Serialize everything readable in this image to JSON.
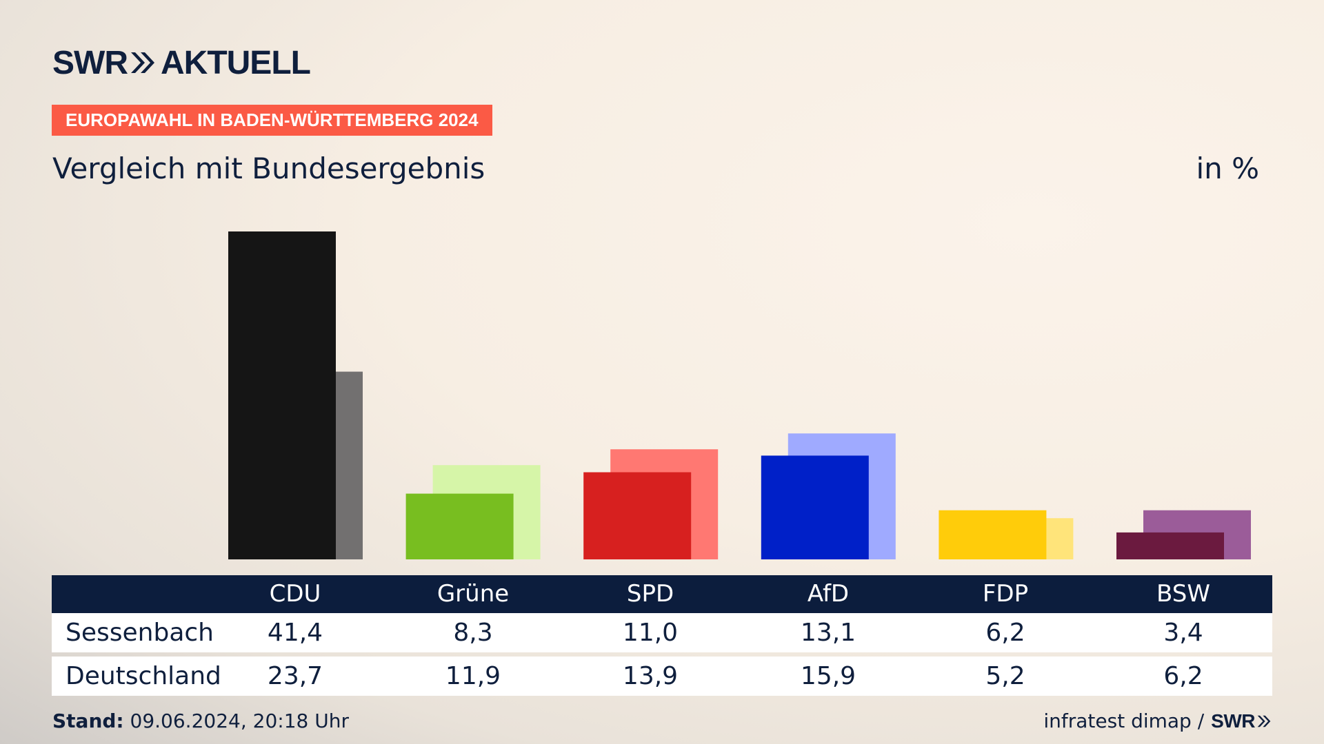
{
  "header": {
    "brand_left": "SWR",
    "brand_right": "AKTUELL",
    "kicker": "EUROPAWAHL IN BADEN-WÜRTTEMBERG 2024",
    "subtitle": "Vergleich mit Bundesergebnis",
    "unit": "in %"
  },
  "colors": {
    "navy": "#0c1d3d",
    "kicker_bg": "#fb5a45"
  },
  "chart_data": {
    "type": "bar",
    "categories": [
      "CDU",
      "Grüne",
      "SPD",
      "AfD",
      "FDP",
      "BSW"
    ],
    "series": [
      {
        "name": "Sessenbach",
        "values": [
          41.4,
          8.3,
          11.0,
          13.1,
          6.2,
          3.4
        ],
        "colors": [
          "#151515",
          "#78be20",
          "#d7201f",
          "#0020c8",
          "#ffcc0a",
          "#6b1a3f"
        ]
      },
      {
        "name": "Deutschland",
        "values": [
          23.7,
          11.9,
          13.9,
          15.9,
          5.2,
          6.2
        ],
        "colors": [
          "#727070",
          "#d6f5a8",
          "#ff7872",
          "#9faaff",
          "#ffe47a",
          "#9b5c99"
        ]
      }
    ],
    "ylim": [
      0,
      41.4
    ]
  },
  "table": {
    "headers": [
      "CDU",
      "Grüne",
      "SPD",
      "AfD",
      "FDP",
      "BSW"
    ],
    "rows": [
      {
        "label": "Sessenbach",
        "values": [
          "41,4",
          "8,3",
          "11,0",
          "13,1",
          "6,2",
          "3,4"
        ]
      },
      {
        "label": "Deutschland",
        "values": [
          "23,7",
          "11,9",
          "13,9",
          "15,9",
          "5,2",
          "6,2"
        ]
      }
    ]
  },
  "footer": {
    "stand_label": "Stand:",
    "stand_value": " 09.06.2024, 20:18 Uhr",
    "source": "infratest dimap /",
    "source_brand": "SWR"
  }
}
